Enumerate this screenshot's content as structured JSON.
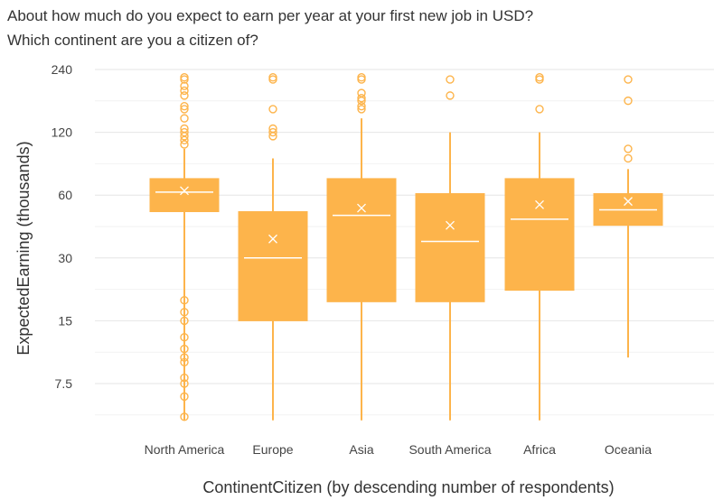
{
  "header": {
    "title": "About how much do you expect to earn per year at your first new job in USD?",
    "subtitle": "Which continent are you a citizen of?"
  },
  "chart_data": {
    "type": "boxplot",
    "title": "About how much do you expect to earn per year at your first new job in USD?",
    "subtitle": "Which continent are you a citizen of?",
    "xlabel": "ContinentCitizen (by descending number of respondents)",
    "ylabel": "ExpectedEarning (thousands)",
    "yscale": "log2",
    "ylim": [
      4.5,
      300
    ],
    "yticks": [
      7.5,
      15,
      30,
      60,
      120,
      240
    ],
    "ytick_labels": [
      "7.5",
      "15",
      "30",
      "60",
      "120",
      "240"
    ],
    "grid": true,
    "color": "#fdb44b",
    "median_color": "#ffffff",
    "categories": [
      "North America",
      "Europe",
      "Asia",
      "South America",
      "Africa",
      "Oceania"
    ],
    "boxes": [
      {
        "name": "North America",
        "whisker_low": 5,
        "q1": 50,
        "median": 62,
        "q3": 72,
        "whisker_high": 100,
        "mean": 63,
        "outliers": [
          5.2,
          6.5,
          7.5,
          8,
          9.5,
          10,
          11,
          12.5,
          15,
          16.5,
          18.8,
          105,
          110,
          115,
          120,
          125,
          140,
          155,
          160,
          180,
          190,
          200,
          215,
          220
        ]
      },
      {
        "name": "Europe",
        "whisker_low": 5,
        "q1": 15,
        "median": 30,
        "q3": 50,
        "whisker_high": 90,
        "mean": 37,
        "outliers": [
          115,
          120,
          125,
          155,
          215,
          220
        ]
      },
      {
        "name": "Asia",
        "whisker_low": 5,
        "q1": 18.5,
        "median": 48,
        "q3": 72,
        "whisker_high": 140,
        "mean": 52,
        "outliers": [
          155,
          160,
          170,
          175,
          185,
          215,
          220
        ]
      },
      {
        "name": "South America",
        "whisker_low": 5,
        "q1": 18.5,
        "median": 36,
        "q3": 61,
        "whisker_high": 120,
        "mean": 43,
        "outliers": [
          180,
          215
        ]
      },
      {
        "name": "Africa",
        "whisker_low": 5,
        "q1": 21,
        "median": 46,
        "q3": 72,
        "whisker_high": 120,
        "mean": 54,
        "outliers": [
          155,
          215,
          220
        ]
      },
      {
        "name": "Oceania",
        "whisker_low": 10,
        "q1": 43,
        "median": 51,
        "q3": 61,
        "whisker_high": 80,
        "mean": 56,
        "outliers": [
          90,
          100,
          170,
          215
        ]
      }
    ]
  }
}
